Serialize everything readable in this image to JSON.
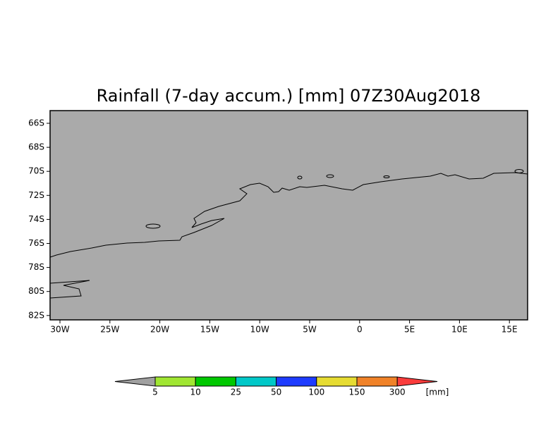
{
  "title": "Rainfall (7-day accum.) [mm] 07Z30Aug2018",
  "map": {
    "lat_labels": [
      "66S",
      "68S",
      "70S",
      "72S",
      "74S",
      "76S",
      "78S",
      "80S",
      "82S"
    ],
    "lon_labels": [
      "30W",
      "25W",
      "20W",
      "15W",
      "10W",
      "5W",
      "0",
      "5E",
      "10E",
      "15E"
    ]
  },
  "legend": {
    "labels": [
      "5",
      "10",
      "25",
      "50",
      "100",
      "150",
      "300"
    ],
    "unit": "[mm]",
    "colors": [
      "#a0a0a0",
      "#a0e632",
      "#00c800",
      "#00c8c8",
      "#1e3cff",
      "#e6dc32",
      "#f08228",
      "#fa3c3c"
    ]
  }
}
